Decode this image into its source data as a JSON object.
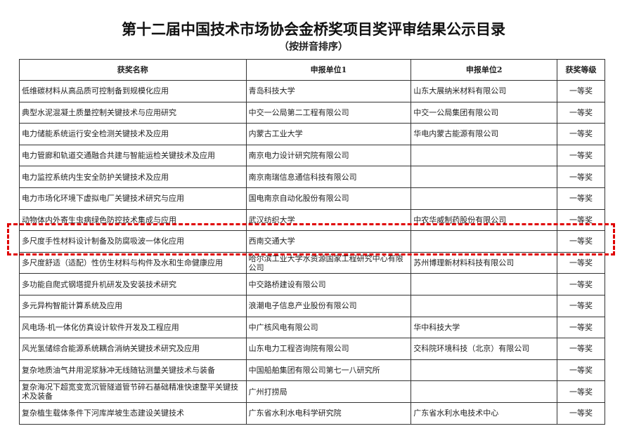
{
  "title": "第十二届中国技术市场协会金桥奖项目奖评审结果公示目录",
  "subtitle": "（按拼音排序）",
  "headers": [
    "获奖名称",
    "申报单位1",
    "申报单位2",
    "获奖等级"
  ],
  "rows": [
    [
      "低维碳材料从高品质可控制备到规模化应用",
      "青岛科技大学",
      "山东大展纳米材料有限公司",
      "一等奖"
    ],
    [
      "典型水泥混凝土质量控制关键技术与应用研究",
      "中交一公局第二工程有限公司",
      "中交一公局集团有限公司",
      "一等奖"
    ],
    [
      "电力储能系统运行安全检测关键技术及应用",
      "内蒙古工业大学",
      "华电内蒙古能源有限公司",
      "一等奖"
    ],
    [
      "电力管廊和轨道交通融合共建与智能运检关键技术及应用",
      "南京电力设计研究院有限公司",
      "",
      "一等奖"
    ],
    [
      "电力监控系统内生安全防护关键技术及应用",
      "南京南瑞信息通信科技有限公司",
      "",
      "一等奖"
    ],
    [
      "电力市场化环境下虚拟电厂关键技术研究与应用",
      "国电南京自动化股份有限公司",
      "",
      "一等奖"
    ],
    [
      "动物体内外寄生虫病绿色防控技术集成与应用",
      "武汉纺织大学",
      "中农华威制药股份有限公司",
      "一等奖"
    ],
    [
      "多尺度手性材料设计制备及防腐吸波一体化应用",
      "西南交通大学",
      "",
      "一等奖"
    ],
    [
      "多尺度舒适（适配）性仿生材料与构件及水和生命健康应用",
      "哈尔滨工业大学水资源国家工程研究中心有限公司",
      "苏州博理新材料科技有限公司",
      "一等奖"
    ],
    [
      "多功能自爬式钢塔提升机研发及安装技术研究",
      "中交路桥建设有限公司",
      "",
      "一等奖"
    ],
    [
      "多元异构智能计算系统及应用",
      "浪潮电子信息产业股份有限公司",
      "",
      "一等奖"
    ],
    [
      "风电场-机一体化仿真设计软件开发及工程应用",
      "中广核风电有限公司",
      "华中科技大学",
      "一等奖"
    ],
    [
      "风光氢储综合能源系统耦合消纳关键技术研究及应用",
      "山东电力工程咨询院有限公司",
      "交科院环境科技（北京）有限公司",
      "一等奖"
    ],
    [
      "复杂地质油气井用泥浆脉冲无线随钻测量关键技术与装备",
      "中国船舶集团有限公司第七一八研究所",
      "",
      "一等奖"
    ],
    [
      "复杂海况下超宽变宽沉管隧道管节碎石基础精准快速整平关键技术及装备",
      "广州打捞局",
      "",
      "一等奖"
    ],
    [
      "复杂植生载体条件下河库岸坡生态建设关键技术",
      "广东省水利水电科学研究院",
      "广东省水利水电技术中心",
      "一等奖"
    ]
  ],
  "highlight_color": "#e00000"
}
